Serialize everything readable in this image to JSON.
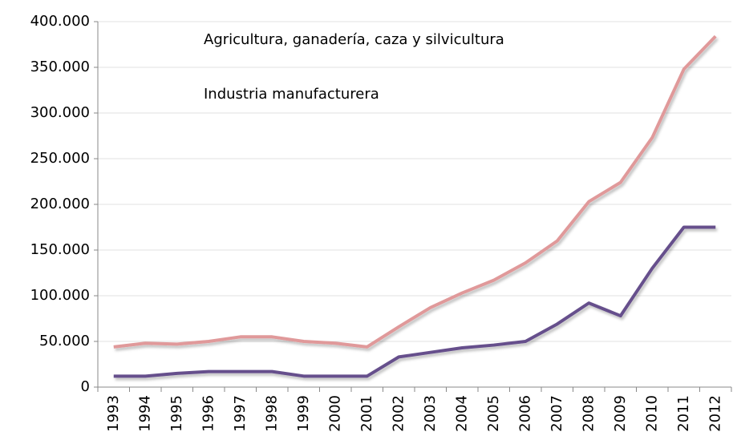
{
  "chart_data": {
    "type": "line",
    "categories": [
      "1993",
      "1994",
      "1995",
      "1996",
      "1997",
      "1998",
      "1999",
      "2000",
      "2001",
      "2002",
      "2003",
      "2004",
      "2005",
      "2006",
      "2007",
      "2008",
      "2009",
      "2010",
      "2011",
      "2012"
    ],
    "series": [
      {
        "name": "Agricultura, ganadería, caza y silvicultura",
        "color": "#66508c",
        "values": [
          12000,
          12000,
          15000,
          17000,
          17000,
          17000,
          12000,
          12000,
          12000,
          33000,
          38000,
          43000,
          46000,
          50000,
          69000,
          92000,
          78000,
          130000,
          175000,
          175000
        ]
      },
      {
        "name": "Industria manufacturera",
        "color": "#e0999a",
        "values": [
          44000,
          48000,
          47000,
          50000,
          55000,
          55000,
          50000,
          48000,
          44000,
          66000,
          87000,
          103000,
          117000,
          136000,
          160000,
          203000,
          224000,
          273000,
          348000,
          384000
        ]
      }
    ],
    "ylim": [
      0,
      400000
    ],
    "yticks": [
      0,
      {
        "value": 50000,
        "label": "50.000"
      },
      {
        "value": 100000,
        "label": "100.000"
      },
      {
        "value": 150000,
        "label": "150.000"
      },
      {
        "value": 200000,
        "label": "200.000"
      },
      {
        "value": 250000,
        "label": "250.000"
      },
      {
        "value": 300000,
        "label": "300.000"
      },
      {
        "value": 350000,
        "label": "350.000"
      },
      {
        "value": 400000,
        "label": "400.000"
      }
    ],
    "grid": true,
    "legend": "top-left"
  }
}
